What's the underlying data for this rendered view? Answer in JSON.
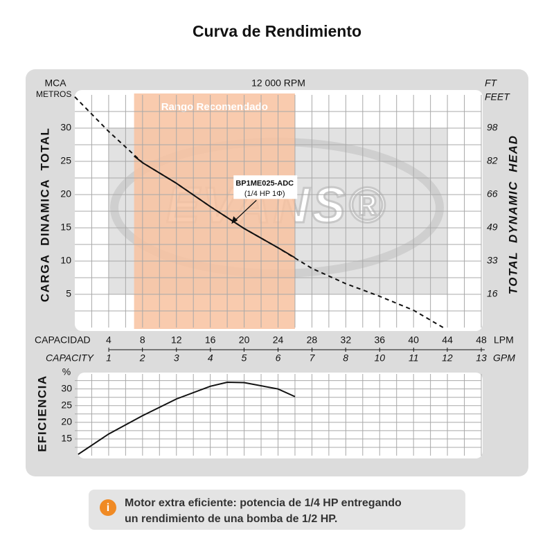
{
  "title": "Curva de Rendimiento",
  "chart_data": [
    {
      "type": "line",
      "title": "12 000 RPM",
      "ylabel": "CARGA DINAMICA TOTAL",
      "yunit": "MCA",
      "yunit2": "METROS",
      "y2label": "TOTAL DYNAMIC HEAD",
      "y2unit": "FT",
      "y2unit2": "FEET",
      "xlabel": "CAPACIDAD",
      "xunit": "LPM",
      "x2label": "CAPACITY",
      "x2unit": "GPM",
      "xlim": [
        0,
        48
      ],
      "xticks": [
        4,
        8,
        12,
        16,
        20,
        24,
        28,
        32,
        36,
        40,
        44,
        48
      ],
      "x2lim": [
        0,
        12.68
      ],
      "x2ticks": [
        {
          "value": 1.06,
          "label": "1"
        },
        {
          "value": 2.11,
          "label": "2"
        },
        {
          "value": 3.17,
          "label": "3"
        },
        {
          "value": 4.23,
          "label": "4"
        },
        {
          "value": 5.28,
          "label": "5"
        },
        {
          "value": 6.34,
          "label": "6"
        },
        {
          "value": 7.4,
          "label": "7"
        },
        {
          "value": 8.45,
          "label": "8"
        },
        {
          "value": 9.51,
          "label": "10"
        },
        {
          "value": 10.57,
          "label": "11"
        },
        {
          "value": 11.62,
          "label": "12"
        },
        {
          "value": 12.68,
          "label": "13"
        }
      ],
      "ylim": [
        0,
        35
      ],
      "yticks": [
        5,
        10,
        15,
        20,
        25,
        30
      ],
      "y2lim": [
        0,
        114.8
      ],
      "y2ticks": [
        {
          "value": 16.4,
          "label": "16"
        },
        {
          "value": 32.8,
          "label": "33"
        },
        {
          "value": 49.2,
          "label": "49"
        },
        {
          "value": 65.6,
          "label": "66"
        },
        {
          "value": 82,
          "label": "82"
        },
        {
          "value": 98.4,
          "label": "98"
        }
      ],
      "grid": true,
      "recommended_range": {
        "label": "Rango Recomendado",
        "from": 7,
        "to": 26,
        "color": "#f8c2a0"
      },
      "series": [
        {
          "x": [
            0,
            4,
            8,
            12,
            16,
            20,
            24,
            28,
            32,
            36,
            40,
            43.5
          ],
          "values": [
            34.7,
            29.5,
            24.8,
            21.7,
            18.2,
            14.9,
            12,
            8.9,
            6.6,
            4.7,
            2.6,
            0
          ],
          "color": "#111111",
          "dashed": true
        },
        {
          "x": [
            7,
            8,
            12,
            16,
            20,
            24,
            26
          ],
          "values": [
            25.8,
            24.8,
            21.7,
            18.2,
            14.9,
            12,
            10.5
          ],
          "color": "#111111",
          "dashed": false
        }
      ],
      "annotation": {
        "lines": [
          "BP1ME025-ADC",
          "(1/4 HP 1Φ)"
        ],
        "x": 18.5,
        "y": 15.6
      },
      "watermark": "EVANS®"
    },
    {
      "type": "line",
      "ylabel": "EFICIENCIA",
      "yunit": "%",
      "xlim": [
        0,
        48
      ],
      "xticks": [
        4,
        8,
        12,
        16,
        20,
        24,
        28,
        32,
        36,
        40,
        44,
        48
      ],
      "ylim": [
        10,
        34.5
      ],
      "yticks": [
        15,
        20,
        25,
        30
      ],
      "grid": true,
      "series": [
        {
          "x": [
            0.4,
            4,
            8,
            12,
            16,
            18,
            20,
            24,
            26
          ],
          "values": [
            10.4,
            16.5,
            22,
            27,
            30.8,
            32,
            31.9,
            30,
            27.7
          ],
          "color": "#111111",
          "dashed": false
        }
      ]
    }
  ],
  "note": {
    "icon": "i",
    "lines": [
      "Motor extra eficiente: potencia de 1/4 HP entregando",
      "un rendimiento de una bomba de 1/2 HP."
    ]
  }
}
